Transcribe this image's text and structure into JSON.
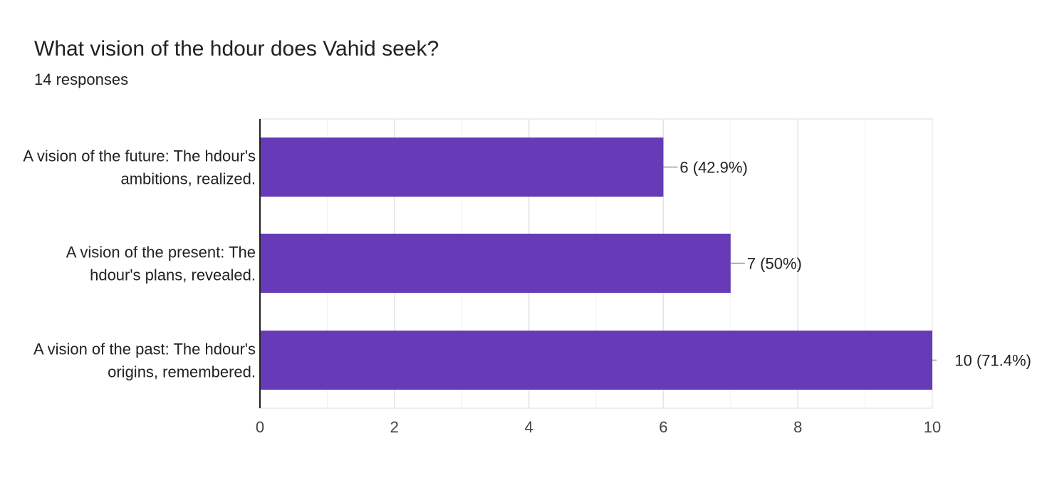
{
  "header": {
    "title": "What vision of the hdour does Vahid seek?",
    "subtitle": "14 responses"
  },
  "colors": {
    "bar": "#673ab7",
    "gridline": "#e8e8e8",
    "axis": "#222222",
    "leader": "#999999"
  },
  "chart_data": {
    "type": "bar",
    "orientation": "horizontal",
    "categories": [
      [
        "A vision of the future: The hdour's",
        "ambitions, realized."
      ],
      [
        "A vision of the present: The",
        "hdour's plans, revealed."
      ],
      [
        "A vision of the past: The hdour's",
        "origins, remembered."
      ]
    ],
    "values": [
      6,
      7,
      10
    ],
    "data_labels": [
      "6 (42.9%)",
      "7 (50%)",
      "10 (71.4%)"
    ],
    "xlim": [
      0,
      10
    ],
    "xticks": [
      0,
      2,
      4,
      6,
      8,
      10
    ],
    "grid": true
  }
}
